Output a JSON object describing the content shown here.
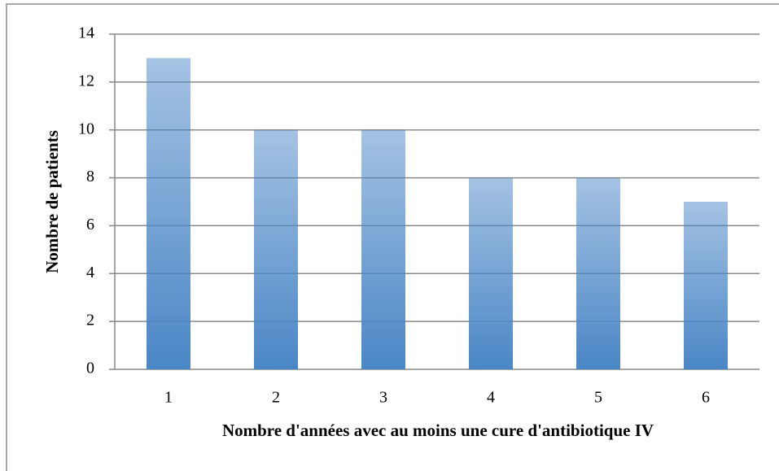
{
  "chart_data": {
    "type": "bar",
    "x_label": "Nombre d'années avec au moins une cure d'antibiotique IV",
    "y_label": "Nombre de patients",
    "categories": [
      "1",
      "2",
      "3",
      "4",
      "5",
      "6"
    ],
    "values": [
      13,
      10,
      10,
      8,
      8,
      7
    ],
    "color": "#4a86c6",
    "ylim": [
      0,
      14
    ],
    "yticks": [
      0,
      2,
      4,
      6,
      8,
      10,
      12,
      14
    ],
    "grid": true
  }
}
